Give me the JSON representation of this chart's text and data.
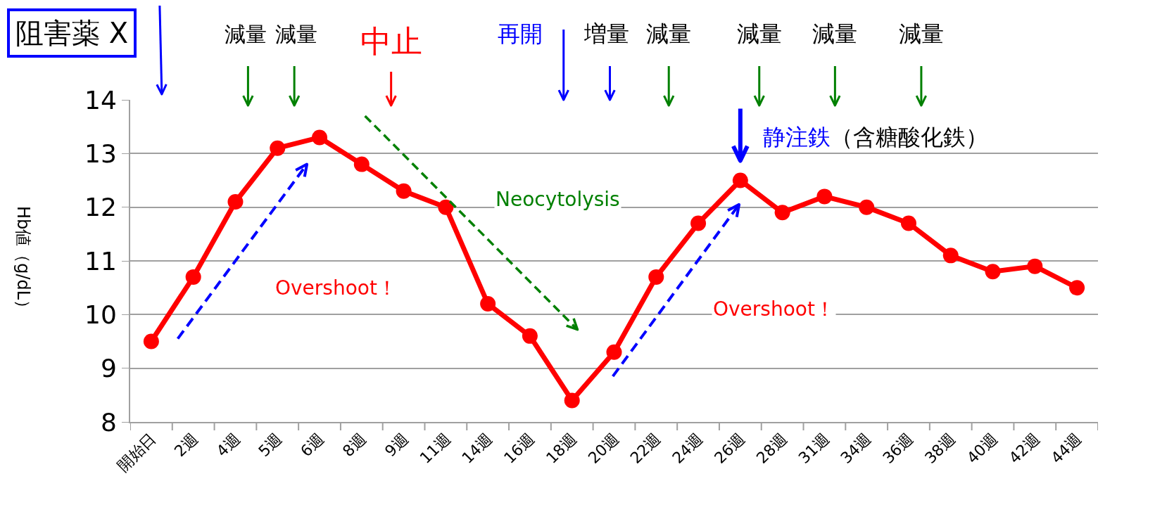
{
  "chart_data": {
    "type": "line",
    "title": "阻害薬 X",
    "ylabel": "Hb値（g/dL）",
    "categories": [
      "開始日",
      "2週",
      "4週",
      "5週",
      "6週",
      "8週",
      "9週",
      "11週",
      "14週",
      "16週",
      "18週",
      "20週",
      "22週",
      "24週",
      "26週",
      "28週",
      "31週",
      "34週",
      "36週",
      "38週",
      "40週",
      "42週",
      "44週"
    ],
    "series": [
      {
        "color": "#ff0000",
        "values": [
          9.5,
          10.7,
          12.1,
          13.1,
          13.3,
          12.8,
          12.3,
          12.0,
          10.2,
          9.6,
          8.4,
          9.3,
          10.7,
          11.7,
          12.5,
          11.9,
          12.2,
          12.0,
          11.7,
          11.1,
          10.8,
          10.9,
          10.5
        ]
      }
    ],
    "ylim": [
      8,
      14
    ],
    "yticks": [
      8,
      9,
      10,
      11,
      12,
      13,
      14
    ],
    "grid": "y",
    "marker": "circle",
    "line_style": "solid",
    "annotations": [
      "減量",
      "減量",
      "中止",
      "再開",
      "増量",
      "減量",
      "減量",
      "減量",
      "減量",
      {
        "text": "静注鉄（含糖酸化鉄）",
        "x": "26週",
        "y": 12.5
      },
      "Overshoot！",
      "Neocytolysis",
      "Overshoot！"
    ]
  }
}
